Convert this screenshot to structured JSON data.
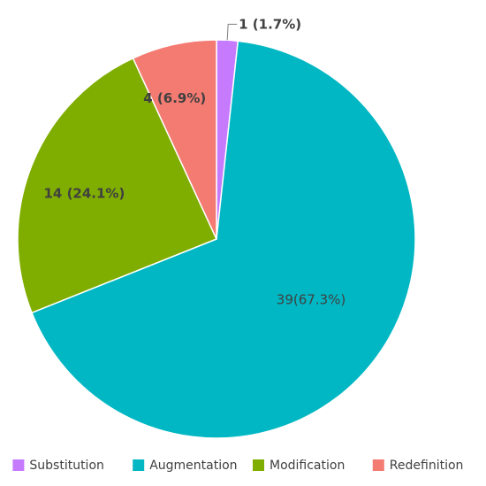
{
  "chart_data": {
    "type": "pie",
    "title": "",
    "legend_position": "bottom",
    "start_angle_deg": 0,
    "direction": "clockwise",
    "slices": [
      {
        "name": "Substitution",
        "value": 1,
        "label": "1 (1.7%)",
        "color": "#c67bff"
      },
      {
        "name": "Augmentation",
        "value": 39,
        "label": "39(67.3%)",
        "color": "#00b7c3"
      },
      {
        "name": "Modification",
        "value": 14,
        "label": "14 (24.1%)",
        "color": "#7fad00"
      },
      {
        "name": "Redefinition",
        "value": 4,
        "label": "4 (6.9%)",
        "color": "#f47b72"
      }
    ]
  }
}
